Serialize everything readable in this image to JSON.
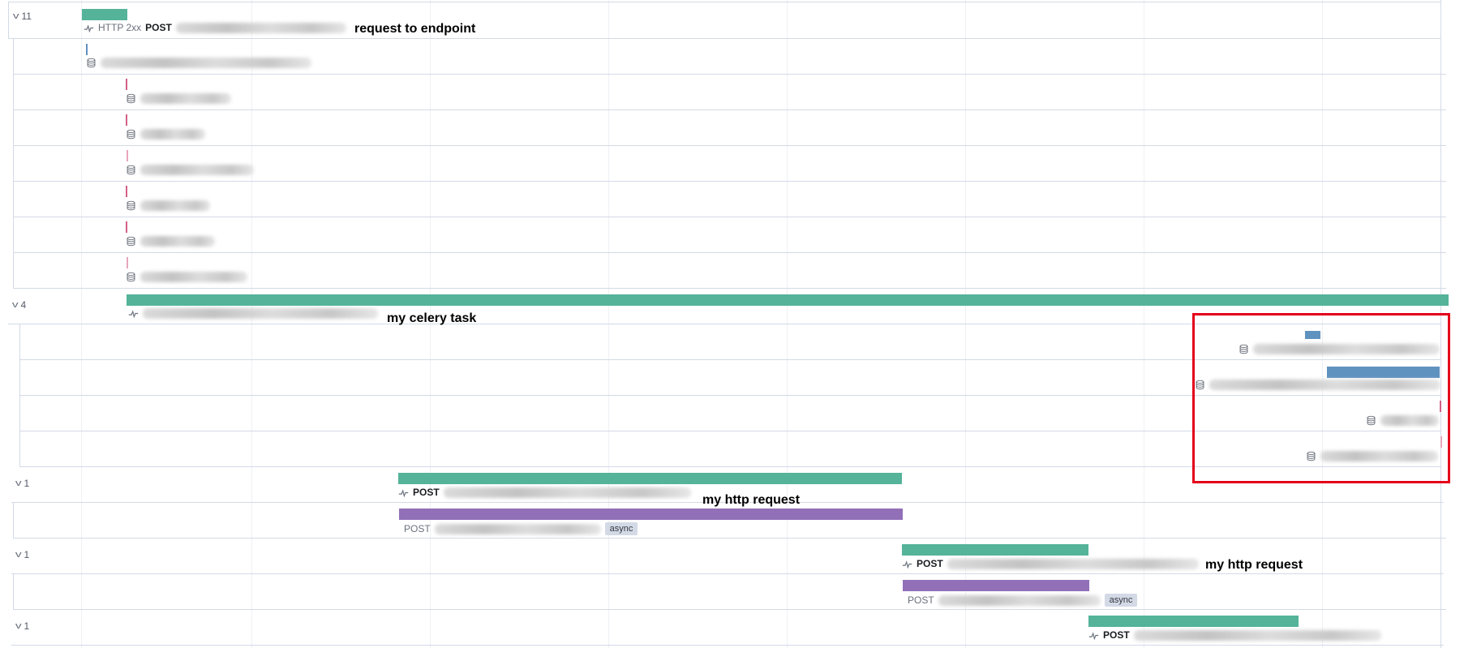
{
  "trace": {
    "groups": [
      {
        "count": "11",
        "status": "HTTP 2xx",
        "method": "POST",
        "annotation": "request to endpoint"
      },
      {
        "count": "4",
        "annotation": "my celery task"
      },
      {
        "count": "1",
        "method": "POST",
        "annotation": "my http request",
        "sub_method": "POST",
        "badge": "async"
      },
      {
        "count": "1",
        "method": "POST",
        "annotation": "my http request",
        "sub_method": "POST",
        "badge": "async"
      },
      {
        "count": "1",
        "method": "POST"
      }
    ]
  },
  "colors": {
    "transaction": "#54b399",
    "http_span": "#9170b8",
    "db_span": "#6092c0",
    "db_tick": "#d36086",
    "highlight": "#e3001b"
  },
  "icons": {
    "transaction": "transaction-icon",
    "db": "database-icon",
    "toggle": "chevron-down-icon"
  }
}
